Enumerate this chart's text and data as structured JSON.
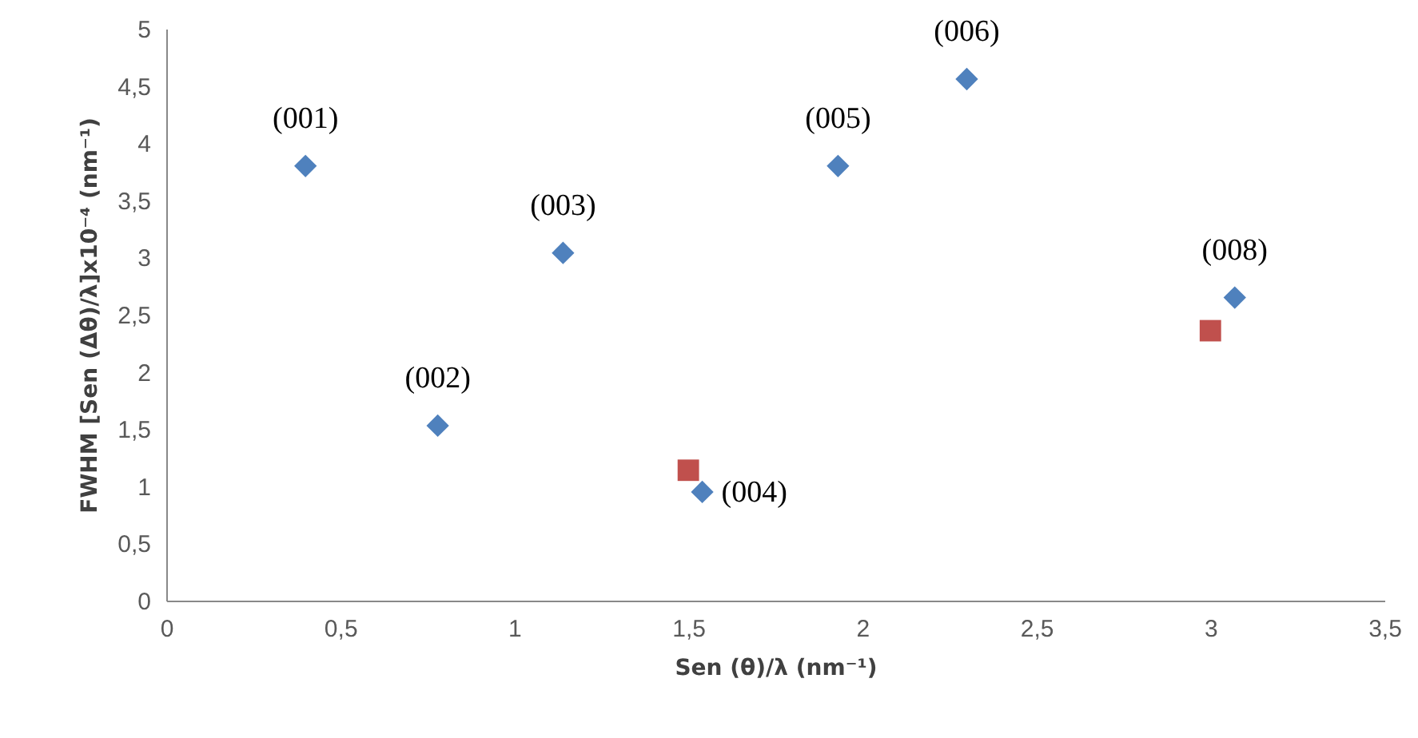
{
  "chart_data": {
    "type": "scatter",
    "xlabel": "Sen (θ)/λ (nm⁻¹)",
    "ylabel": "FWHM [Sen (Δθ)/λ]x10⁻⁴ (nm⁻¹)",
    "xlim": [
      0,
      3.5
    ],
    "ylim": [
      0,
      5
    ],
    "xticks": [
      0,
      {
        "value": 0.5,
        "label": "0,5"
      },
      1,
      {
        "value": 1.5,
        "label": "1,5"
      },
      2,
      {
        "value": 2.5,
        "label": "2,5"
      },
      3,
      {
        "value": 3.5,
        "label": "3,5"
      }
    ],
    "yticks": [
      0,
      {
        "value": 0.5,
        "label": "0,5"
      },
      1,
      {
        "value": 1.5,
        "label": "1,5"
      },
      2,
      {
        "value": 2.5,
        "label": "2,5"
      },
      3,
      {
        "value": 3.5,
        "label": "3,5"
      },
      4,
      {
        "value": 4.5,
        "label": "4,5"
      },
      5
    ],
    "grid": false,
    "series": [
      {
        "color": "#4f81bd",
        "marker": "diamond",
        "x": [
          0.4,
          0.78,
          1.14,
          1.54,
          1.93,
          2.3,
          3.07
        ],
        "values": [
          3.8,
          1.53,
          3.04,
          0.95,
          3.8,
          4.56,
          2.65
        ]
      },
      {
        "color": "#c0504d",
        "marker": "square",
        "x": [
          1.5,
          3.0
        ],
        "values": [
          1.14,
          2.36
        ]
      }
    ],
    "annotations": [
      {
        "text": "(001)",
        "x": 0.4,
        "y": 3.8
      },
      {
        "text": "(002)",
        "x": 0.78,
        "y": 1.53
      },
      {
        "text": "(003)",
        "x": 1.14,
        "y": 3.04
      },
      {
        "text": "(004)",
        "x": 1.54,
        "y": 0.95
      },
      {
        "text": "(005)",
        "x": 1.93,
        "y": 3.8
      },
      {
        "text": "(006)",
        "x": 2.3,
        "y": 4.56
      },
      {
        "text": "(008)",
        "x": 3.07,
        "y": 2.65
      }
    ]
  }
}
